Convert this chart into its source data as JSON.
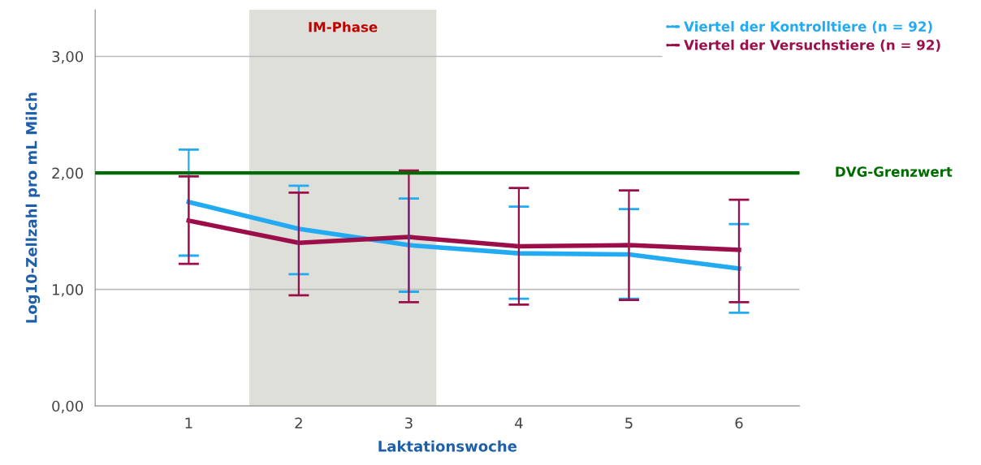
{
  "chart_data": {
    "type": "line",
    "xlabel": "Laktationswoche",
    "ylabel": "Log10-Zellzahl pro mL Milch",
    "x": [
      1,
      2,
      3,
      4,
      5,
      6
    ],
    "xlim": [
      0.15,
      6.55
    ],
    "xticks": [
      1,
      2,
      3,
      4,
      5,
      6
    ],
    "ylim": [
      0,
      3.4
    ],
    "yticks": [
      {
        "value": 0,
        "label": "0,00"
      },
      {
        "value": 1,
        "label": "1,00"
      },
      {
        "value": 2,
        "label": "2,00"
      },
      {
        "value": 3,
        "label": "3,00"
      }
    ],
    "series": [
      {
        "name": "Viertel der Kontrolltiere (n = 92)",
        "color": "#22aaf2",
        "values": [
          1.75,
          1.52,
          1.38,
          1.31,
          1.3,
          1.18
        ],
        "errors": [
          [
            1.29,
            2.2
          ],
          [
            1.13,
            1.89
          ],
          [
            0.98,
            1.78
          ],
          [
            0.92,
            1.71
          ],
          [
            0.92,
            1.69
          ],
          [
            0.8,
            1.56
          ]
        ]
      },
      {
        "name": "Viertel der Versuchstiere (n = 92)",
        "color": "#9b0e4a",
        "values": [
          1.59,
          1.4,
          1.45,
          1.37,
          1.38,
          1.34
        ],
        "errors": [
          [
            1.22,
            1.97
          ],
          [
            0.95,
            1.83
          ],
          [
            0.89,
            2.02
          ],
          [
            0.87,
            1.87
          ],
          [
            0.91,
            1.85
          ],
          [
            0.89,
            1.77
          ]
        ]
      }
    ],
    "ref_lines": [
      {
        "axis": "y",
        "value": 2,
        "label": "DVG-Grenzwert",
        "color": "#006b00"
      }
    ],
    "bands": [
      {
        "axis": "x",
        "from": 1.55,
        "to": 3.25,
        "label": "IM-Phase",
        "color": "#dedfd9"
      }
    ],
    "grid": "y",
    "legend": "top right",
    "marker": "none",
    "line_style": "solid"
  }
}
